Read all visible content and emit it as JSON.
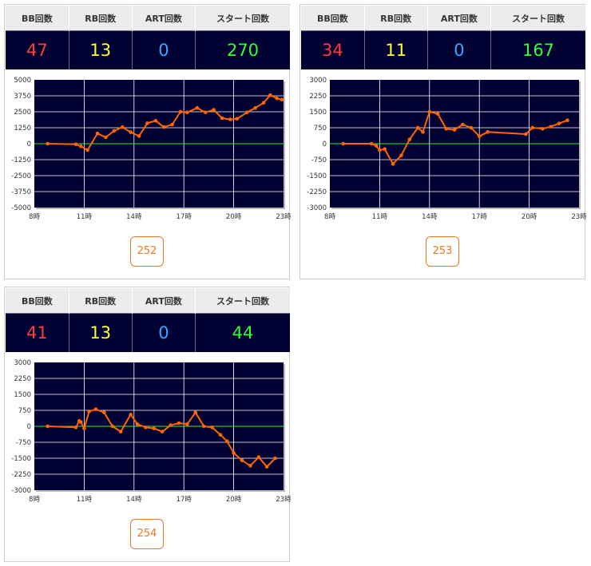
{
  "headers": {
    "bb": "BB回数",
    "rb": "RB回数",
    "art": "ART回数",
    "start": "スタート回数"
  },
  "colors": {
    "plot_bg": "#000033",
    "grid": "#ffffff",
    "zero_line": "#33ee33",
    "series": "#ff6600",
    "bb": "#ff3b3b",
    "rb": "#ffff33",
    "art": "#33aaff",
    "start": "#33ff33",
    "button": "#ee7722"
  },
  "machines": [
    {
      "bb": "47",
      "rb": "13",
      "art": "0",
      "start": "270",
      "button_label": "252"
    },
    {
      "bb": "34",
      "rb": "11",
      "art": "0",
      "start": "167",
      "button_label": "253"
    },
    {
      "bb": "41",
      "rb": "13",
      "art": "0",
      "start": "44",
      "button_label": "254"
    }
  ],
  "chart_data": [
    {
      "type": "line",
      "x_ticks": [
        "8時",
        "11時",
        "14時",
        "17時",
        "20時",
        "23時"
      ],
      "y_ticks": [
        "5000",
        "3750",
        "2500",
        "1250",
        "0",
        "-1250",
        "-2500",
        "-3750",
        "-5000"
      ],
      "xlim": [
        8,
        23
      ],
      "ylim": [
        -5000,
        5000
      ],
      "grid": true,
      "x": [
        8.8,
        10.5,
        10.8,
        11.2,
        11.8,
        12.3,
        12.8,
        13.3,
        13.8,
        14.3,
        14.8,
        15.3,
        15.8,
        16.3,
        16.8,
        17.2,
        17.8,
        18.3,
        18.8,
        19.3,
        19.8,
        20.2,
        20.8,
        21.3,
        21.8,
        22.2,
        22.6,
        22.9
      ],
      "y": [
        0,
        -50,
        -200,
        -500,
        800,
        500,
        1000,
        1300,
        900,
        600,
        1600,
        1800,
        1300,
        1500,
        2500,
        2450,
        2800,
        2450,
        2650,
        2000,
        1900,
        1950,
        2450,
        2800,
        3200,
        3800,
        3550,
        3450
      ]
    },
    {
      "type": "line",
      "x_ticks": [
        "8時",
        "11時",
        "14時",
        "17時",
        "20時",
        "23時"
      ],
      "y_ticks": [
        "3000",
        "2250",
        "1500",
        "750",
        "0",
        "-750",
        "-1500",
        "-2250",
        "-3000"
      ],
      "xlim": [
        8,
        23
      ],
      "ylim": [
        -3000,
        3000
      ],
      "grid": true,
      "x": [
        8.8,
        10.5,
        10.8,
        11.0,
        11.3,
        11.8,
        12.3,
        12.8,
        13.3,
        13.6,
        14.0,
        14.5,
        15.0,
        15.5,
        16.0,
        16.5,
        17.0,
        17.5,
        19.8,
        20.2,
        20.8,
        21.3,
        21.8,
        22.3
      ],
      "y": [
        0,
        0,
        -100,
        -300,
        -250,
        -950,
        -550,
        200,
        750,
        550,
        1500,
        1400,
        700,
        650,
        900,
        750,
        350,
        550,
        450,
        750,
        700,
        800,
        950,
        1100
      ]
    },
    {
      "type": "line",
      "x_ticks": [
        "8時",
        "11時",
        "14時",
        "17時",
        "20時",
        "23時"
      ],
      "y_ticks": [
        "3000",
        "2250",
        "1500",
        "750",
        "0",
        "-750",
        "-1500",
        "-2250",
        "-3000"
      ],
      "xlim": [
        8,
        23
      ],
      "ylim": [
        -3000,
        3000
      ],
      "grid": true,
      "x": [
        8.8,
        10.5,
        10.7,
        10.8,
        11.0,
        11.3,
        11.7,
        12.2,
        12.7,
        13.2,
        13.8,
        14.2,
        14.7,
        15.2,
        15.7,
        16.2,
        16.7,
        17.2,
        17.7,
        18.2,
        18.7,
        19.2,
        19.6,
        20.0,
        20.5,
        21.0,
        21.5,
        22.0,
        22.5
      ],
      "y": [
        0,
        -50,
        250,
        200,
        -100,
        700,
        800,
        650,
        0,
        -250,
        550,
        100,
        -50,
        -100,
        -250,
        50,
        150,
        100,
        650,
        0,
        -50,
        -400,
        -700,
        -1250,
        -1600,
        -1850,
        -1450,
        -1900,
        -1500
      ]
    }
  ]
}
